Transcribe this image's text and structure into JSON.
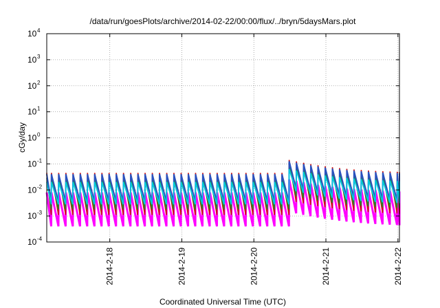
{
  "chart_data": {
    "type": "line",
    "title": "/data/run/goesPlots/archive/2014-02-22/00:00/flux/../bryn/5daysMars.plot",
    "xlabel": "Coordinated Universal Time (UTC)",
    "ylabel": "cGy/day",
    "y_scale": "log",
    "ylim": [
      0.0001,
      10000
    ],
    "y_ticks": [
      {
        "base": "10",
        "exp": "-4",
        "value": 0.0001
      },
      {
        "base": "10",
        "exp": "-3",
        "value": 0.001
      },
      {
        "base": "10",
        "exp": "-2",
        "value": 0.01
      },
      {
        "base": "10",
        "exp": "-1",
        "value": 0.1
      },
      {
        "base": "10",
        "exp": "0",
        "value": 1
      },
      {
        "base": "10",
        "exp": "1",
        "value": 10
      },
      {
        "base": "10",
        "exp": "2",
        "value": 100
      },
      {
        "base": "10",
        "exp": "3",
        "value": 1000
      },
      {
        "base": "10",
        "exp": "4",
        "value": 10000
      }
    ],
    "x_range": [
      "2014-02-17 03:00",
      "2014-02-22 00:30"
    ],
    "x_ticks": [
      "2014-2-18",
      "2014-2-19",
      "2014-2-20",
      "2014-2-21",
      "2014-2-22"
    ],
    "grid": true,
    "legend": "none",
    "sawtooth_period_hours": 2.4,
    "enhancement_event": {
      "start": "2014-02-20 11:30",
      "peak_factor": 3.2,
      "decay_hours": 12
    },
    "series": [
      {
        "color": "#ff00ff",
        "peak": 0.008,
        "trough": 0.0004
      },
      {
        "color": "#cc1111",
        "peak": 0.045,
        "trough": 0.0011
      },
      {
        "color": "#228b22",
        "peak": 0.028,
        "trough": 0.0018
      },
      {
        "color": "#2a52be",
        "peak": 0.04,
        "trough": 0.0035
      },
      {
        "color": "#00c8e0",
        "peak": 0.02,
        "trough": 0.0028
      }
    ]
  }
}
